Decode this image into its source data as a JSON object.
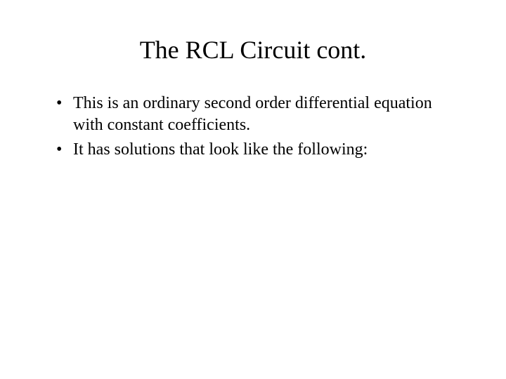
{
  "slide": {
    "title": "The RCL Circuit cont.",
    "bullets": [
      "This is an ordinary second order differential equation with constant coefficients.",
      "It has solutions that look like the following:"
    ],
    "title_fontsize": 36,
    "body_fontsize": 24,
    "text_color": "#000000",
    "background_color": "#ffffff",
    "font_family": "Times New Roman"
  }
}
